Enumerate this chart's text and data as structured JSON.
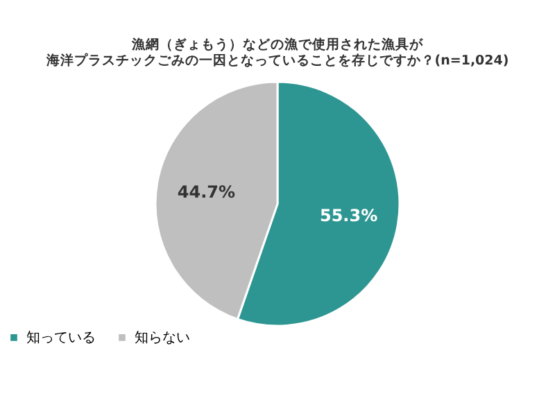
{
  "chart_data": {
    "type": "pie",
    "title": [
      "漁網（ぎょもう）などの漁で使用された漁具が",
      "海洋プラスチックごみの一因となっていることを存じですか？(n=1,024)"
    ],
    "categories": [
      "知っている",
      "知らない"
    ],
    "values": [
      55.3,
      44.7
    ],
    "colors": [
      "#2e9692",
      "#bfbfbf"
    ],
    "value_labels": [
      "55.3%",
      "44.7%"
    ],
    "legend": "bottom"
  }
}
